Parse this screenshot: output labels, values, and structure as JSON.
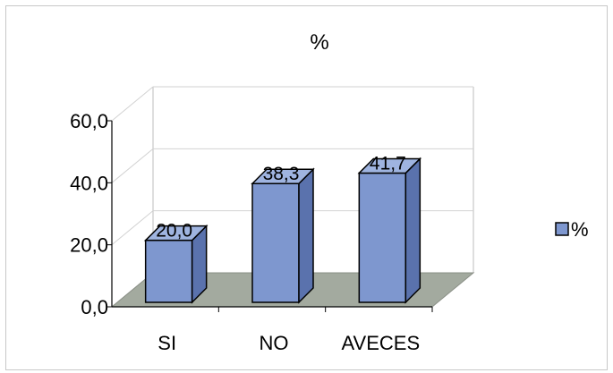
{
  "chart_data": {
    "type": "bar",
    "title": "%",
    "categories": [
      "SI",
      "NO",
      "AVECES"
    ],
    "series": [
      {
        "name": "%",
        "values": [
          20.0,
          38.3,
          41.7
        ]
      }
    ],
    "data_labels": [
      "20,0",
      "38,3",
      "41,7"
    ],
    "yticks": [
      "0,0",
      "20,0",
      "40,0",
      "60,0"
    ],
    "ylim": [
      0,
      60
    ],
    "xlabel": "",
    "ylabel": "",
    "grid": true,
    "legend_position": "right",
    "three_d": true,
    "colors": {
      "bar_front": "#7e97cf",
      "bar_side": "#5a72ad",
      "bar_top": "#9fb4e0",
      "floor": "#a3aa9f",
      "grid": "#d2d2d2",
      "wall_line": "#bdbdbd"
    }
  }
}
